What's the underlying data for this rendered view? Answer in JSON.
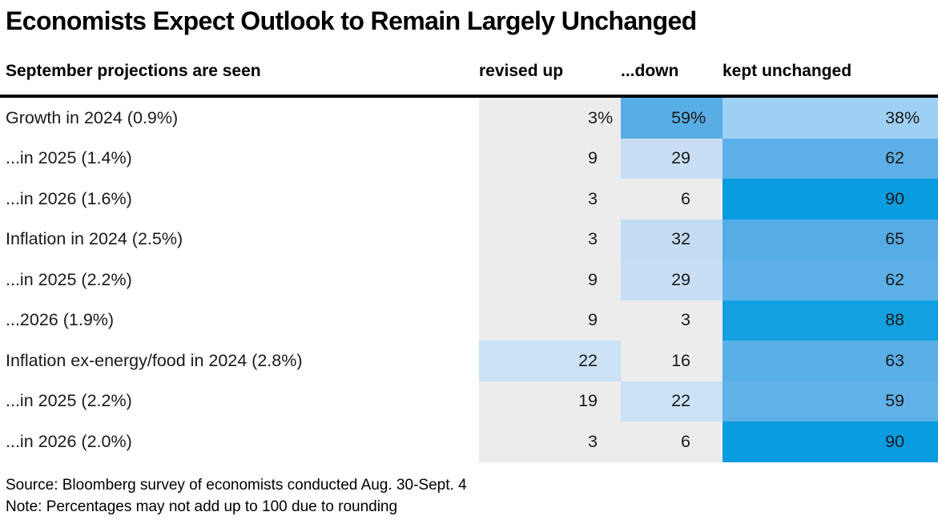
{
  "title": "Economists Expect Outlook to Remain Largely Unchanged",
  "table": {
    "header": {
      "label": "September projections are seen",
      "up": "revised up",
      "down": "...down",
      "kept": "kept unchanged"
    },
    "rows": [
      {
        "label": "Growth in 2024 (0.9%)",
        "up": "3",
        "down": "59",
        "kept": "38",
        "suffix": "%",
        "bg": {
          "up": "#ececec",
          "down": "#58ade5",
          "kept": "#9ed0f3"
        }
      },
      {
        "label": "...in 2025 (1.4%)",
        "up": "9",
        "down": "29",
        "kept": "62",
        "suffix": "",
        "bg": {
          "up": "#ececec",
          "down": "#c8def4",
          "kept": "#5db0e7"
        }
      },
      {
        "label": "...in 2026 (1.6%)",
        "up": "3",
        "down": "6",
        "kept": "90",
        "suffix": "",
        "bg": {
          "up": "#ececec",
          "down": "#ececec",
          "kept": "#099ce1"
        }
      },
      {
        "label": "Inflation in 2024 (2.5%)",
        "up": "3",
        "down": "32",
        "kept": "65",
        "suffix": "",
        "bg": {
          "up": "#ececec",
          "down": "#c3dcf3",
          "kept": "#56ace5"
        }
      },
      {
        "label": "...in 2025 (2.2%)",
        "up": "9",
        "down": "29",
        "kept": "62",
        "suffix": "",
        "bg": {
          "up": "#ececec",
          "down": "#c8def4",
          "kept": "#5db0e7"
        }
      },
      {
        "label": "...2026 (1.9%)",
        "up": "9",
        "down": "3",
        "kept": "88",
        "suffix": "",
        "bg": {
          "up": "#ececec",
          "down": "#ececec",
          "kept": "#12a0e1"
        }
      },
      {
        "label": "Inflation ex-energy/food in 2024 (2.8%)",
        "up": "22",
        "down": "16",
        "kept": "63",
        "suffix": "",
        "bg": {
          "up": "#cbe1f5",
          "down": "#ececec",
          "kept": "#5aafe7"
        }
      },
      {
        "label": "...in 2025 (2.2%)",
        "up": "19",
        "down": "22",
        "kept": "59",
        "suffix": "",
        "bg": {
          "up": "#ececec",
          "down": "#cbe1f5",
          "kept": "#5fb1e8"
        }
      },
      {
        "label": "...in 2026 (2.0%)",
        "up": "3",
        "down": "6",
        "kept": "90",
        "suffix": "",
        "bg": {
          "up": "#ececec",
          "down": "#ececec",
          "kept": "#099ce1"
        }
      }
    ]
  },
  "footer": {
    "source": "Source: Bloomberg survey of economists conducted Aug. 30-Sept. 4",
    "note": "Note: Percentages may not add up to 100 due to rounding"
  },
  "colors": {
    "low_gray": "#ececec",
    "light_blue": "#c8def4",
    "mid_blue": "#5db0e7",
    "strong_blue": "#099ce1"
  },
  "chart_data": {
    "type": "heatmap",
    "title": "Economists Expect Outlook to Remain Largely Unchanged",
    "subtitle": "September projections are seen",
    "categories": [
      "Growth in 2024 (0.9%)",
      "...in 2025 (1.4%)",
      "...in 2026 (1.6%)",
      "Inflation in 2024 (2.5%)",
      "...in 2025 (2.2%)",
      "...2026 (1.9%)",
      "Inflation ex-energy/food in 2024 (2.8%)",
      "...in 2025 (2.2%)",
      "...in 2026 (2.0%)"
    ],
    "series": [
      {
        "name": "revised up",
        "values": [
          3,
          9,
          3,
          3,
          9,
          9,
          22,
          19,
          3
        ]
      },
      {
        "name": "...down",
        "values": [
          59,
          29,
          6,
          32,
          29,
          3,
          16,
          22,
          6
        ]
      },
      {
        "name": "kept unchanged",
        "values": [
          38,
          62,
          90,
          65,
          62,
          88,
          63,
          59,
          90
        ]
      }
    ],
    "unit": "%",
    "value_range": [
      0,
      100
    ],
    "color_scale": "gray (#ececec) for low values ramping to saturated blue (#099ce1) for high values",
    "source": "Source: Bloomberg survey of economists conducted Aug. 30-Sept. 4",
    "note": "Note: Percentages may not add up to 100 due to rounding"
  }
}
